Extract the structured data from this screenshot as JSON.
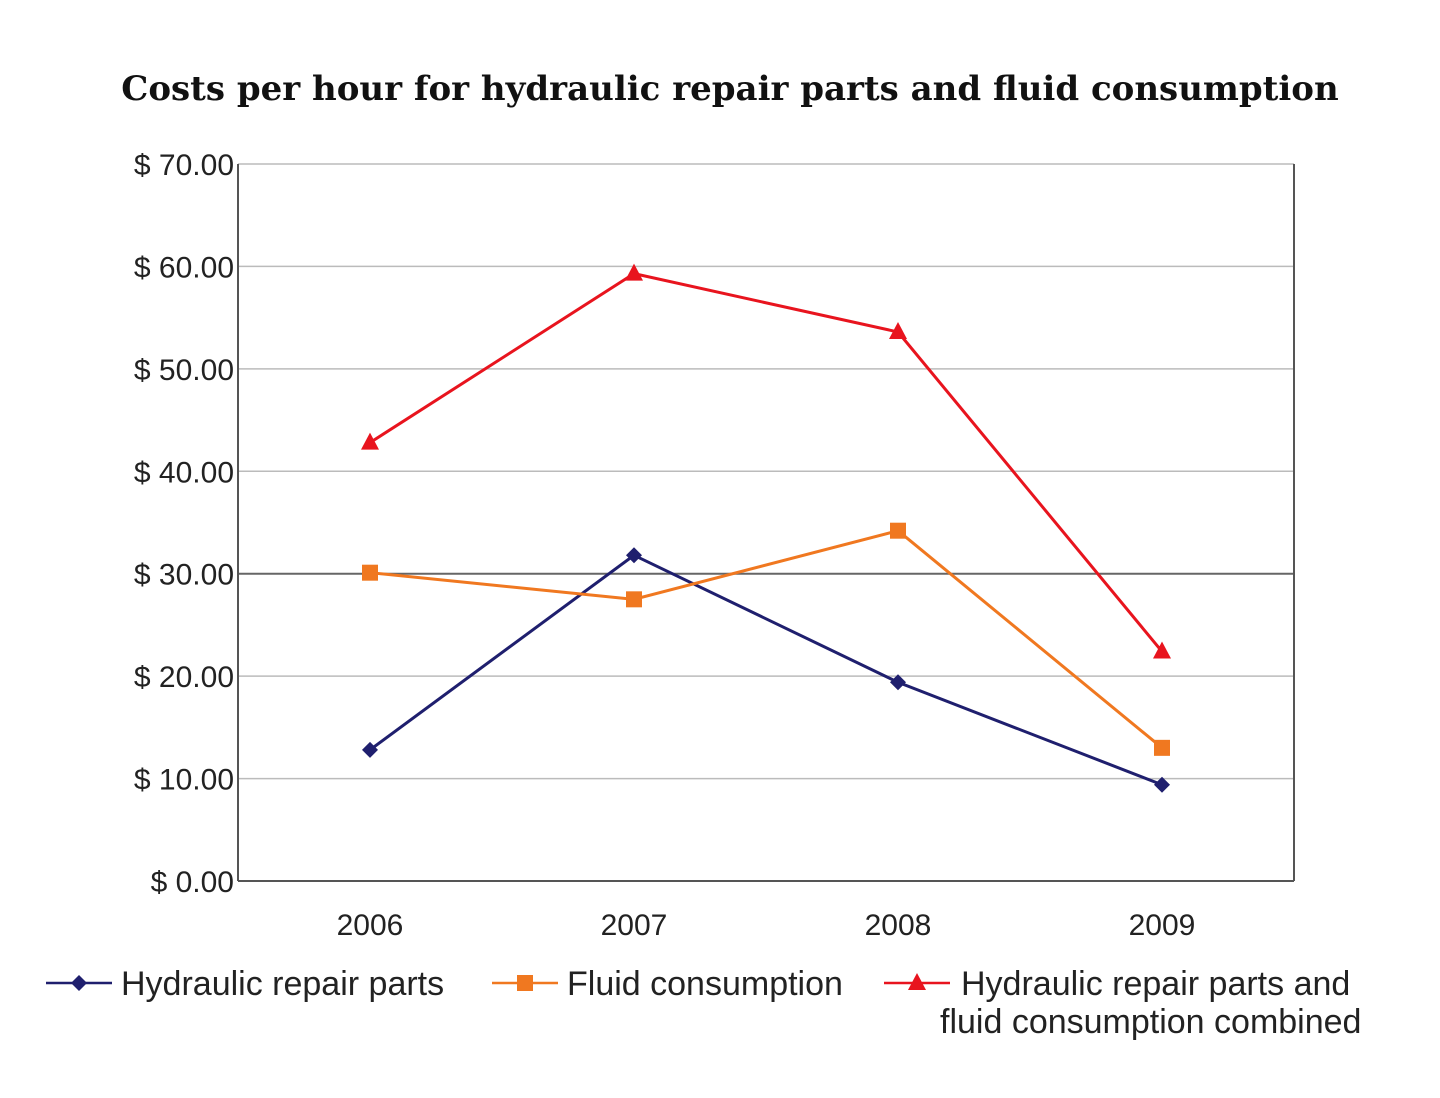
{
  "chart_data": {
    "type": "line",
    "title": "Costs per hour for hydraulic repair parts and fluid consumption",
    "xlabel": "",
    "ylabel": "",
    "categories": [
      "2006",
      "2007",
      "2008",
      "2009"
    ],
    "ylim": [
      0,
      70
    ],
    "yticks": [
      0,
      10,
      20,
      30,
      40,
      50,
      60,
      70
    ],
    "ytick_labels": [
      "$ 0.00",
      "$ 10.00",
      "$ 20.00",
      "$ 30.00",
      "$ 40.00",
      "$ 50.00",
      "$ 60.00",
      "$ 70.00"
    ],
    "grid": true,
    "legend_position": "bottom",
    "series": [
      {
        "name": "Hydraulic repair parts",
        "color": "#1f1f6e",
        "marker": "diamond",
        "values": [
          12.8,
          31.8,
          19.4,
          9.4
        ]
      },
      {
        "name": "Fluid consumption",
        "color": "#f07820",
        "marker": "square",
        "values": [
          30.1,
          27.5,
          34.2,
          13.0
        ]
      },
      {
        "name": "Hydraulic repair parts and fluid consumption combined",
        "name_lines": [
          "Hydraulic repair parts and",
          "fluid consumption combined"
        ],
        "color": "#e8141e",
        "marker": "triangle",
        "values": [
          42.8,
          59.3,
          53.6,
          22.4
        ]
      }
    ]
  }
}
